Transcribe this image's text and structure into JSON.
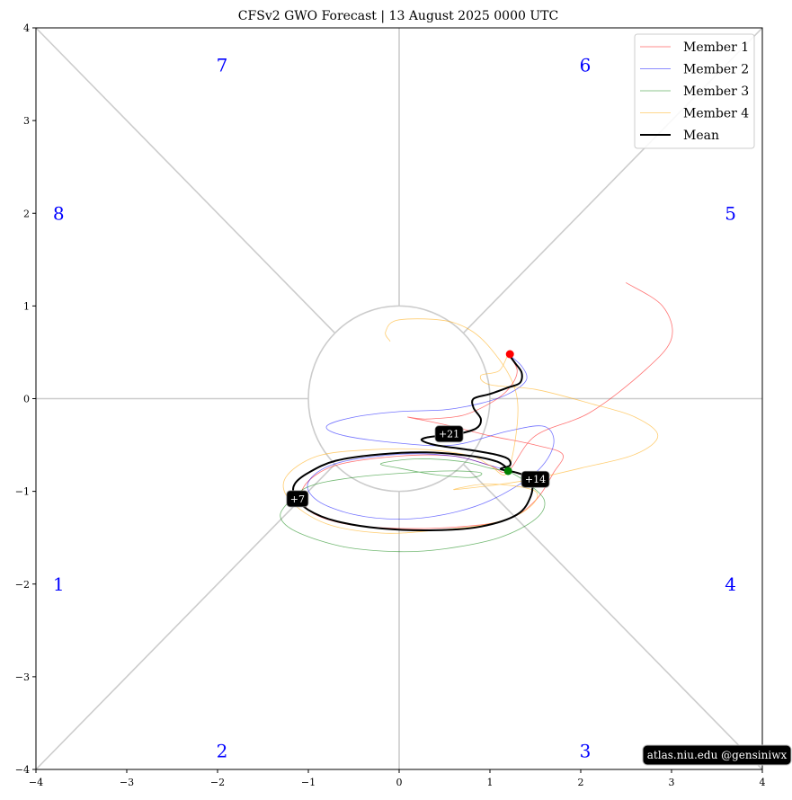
{
  "chart_data": {
    "type": "line",
    "title": "CFSv2 GWO Forecast   |   13  August  2025 0000 UTC",
    "xlim": [
      -4,
      4
    ],
    "ylim": [
      -4,
      4
    ],
    "xticks": [
      -4,
      -3,
      -2,
      -1,
      0,
      1,
      2,
      3,
      4
    ],
    "yticks": [
      -4,
      -3,
      -2,
      -1,
      0,
      1,
      2,
      3,
      4
    ],
    "xtick_labels": [
      "−4",
      "−3",
      "−2",
      "−1",
      "0",
      "1",
      "2",
      "3",
      "4"
    ],
    "ytick_labels": [
      "−4",
      "−3",
      "−2",
      "−1",
      "0",
      "1",
      "2",
      "3",
      "4"
    ],
    "grid": false,
    "unit_circle": true,
    "phase_labels": [
      {
        "text": "1",
        "x": -3.75,
        "y": -2.0
      },
      {
        "text": "2",
        "x": -1.95,
        "y": -3.8
      },
      {
        "text": "3",
        "x": 2.05,
        "y": -3.8
      },
      {
        "text": "4",
        "x": 3.65,
        "y": -2.0
      },
      {
        "text": "5",
        "x": 3.65,
        "y": 2.0
      },
      {
        "text": "6",
        "x": 2.05,
        "y": 3.6
      },
      {
        "text": "7",
        "x": -1.95,
        "y": 3.6
      },
      {
        "text": "8",
        "x": -3.75,
        "y": 2.0
      }
    ],
    "legend_position": "top-right",
    "series": [
      {
        "name": "Member 1",
        "color": "#ff0000",
        "points": [
          [
            1.2,
            0.48
          ],
          [
            1.3,
            0.3
          ],
          [
            1.2,
            0.1
          ],
          [
            1.0,
            -0.05
          ],
          [
            0.7,
            -0.18
          ],
          [
            0.3,
            -0.22
          ],
          [
            0.1,
            -0.2
          ],
          [
            0.5,
            -0.28
          ],
          [
            1.0,
            -0.4
          ],
          [
            1.5,
            -0.5
          ],
          [
            1.8,
            -0.6
          ],
          [
            1.7,
            -0.8
          ],
          [
            1.5,
            -1.1
          ],
          [
            1.2,
            -1.3
          ],
          [
            0.7,
            -1.38
          ],
          [
            0.0,
            -1.4
          ],
          [
            -0.6,
            -1.35
          ],
          [
            -1.0,
            -1.2
          ],
          [
            -1.05,
            -0.95
          ],
          [
            -0.7,
            -0.72
          ],
          [
            0.0,
            -0.62
          ],
          [
            0.6,
            -0.62
          ],
          [
            1.0,
            -0.72
          ],
          [
            1.2,
            -0.78
          ],
          [
            1.5,
            -0.4
          ],
          [
            2.1,
            -0.15
          ],
          [
            2.7,
            0.3
          ],
          [
            3.0,
            0.65
          ],
          [
            2.9,
            1.0
          ],
          [
            2.5,
            1.25
          ]
        ]
      },
      {
        "name": "Member 2",
        "color": "#0000ff",
        "points": [
          [
            1.2,
            0.48
          ],
          [
            1.35,
            0.35
          ],
          [
            1.4,
            0.2
          ],
          [
            1.2,
            0.05
          ],
          [
            0.9,
            -0.05
          ],
          [
            0.5,
            -0.12
          ],
          [
            0.0,
            -0.14
          ],
          [
            -0.5,
            -0.2
          ],
          [
            -0.8,
            -0.3
          ],
          [
            -0.6,
            -0.4
          ],
          [
            0.0,
            -0.48
          ],
          [
            0.6,
            -0.5
          ],
          [
            1.2,
            -0.35
          ],
          [
            1.6,
            -0.3
          ],
          [
            1.7,
            -0.5
          ],
          [
            1.5,
            -0.8
          ],
          [
            1.0,
            -1.1
          ],
          [
            0.5,
            -1.25
          ],
          [
            0.0,
            -1.3
          ],
          [
            -0.5,
            -1.25
          ],
          [
            -0.9,
            -1.1
          ],
          [
            -1.0,
            -0.9
          ],
          [
            -0.7,
            -0.7
          ],
          [
            0.0,
            -0.6
          ],
          [
            0.6,
            -0.62
          ],
          [
            1.0,
            -0.72
          ],
          [
            1.2,
            -0.78
          ]
        ]
      },
      {
        "name": "Member 3",
        "color": "#008000",
        "points": [
          [
            1.2,
            -0.78
          ],
          [
            1.4,
            -0.9
          ],
          [
            1.6,
            -1.1
          ],
          [
            1.5,
            -1.3
          ],
          [
            1.1,
            -1.5
          ],
          [
            0.5,
            -1.62
          ],
          [
            0.0,
            -1.65
          ],
          [
            -0.6,
            -1.6
          ],
          [
            -1.1,
            -1.45
          ],
          [
            -1.3,
            -1.3
          ],
          [
            -1.25,
            -1.15
          ],
          [
            -1.0,
            -0.95
          ],
          [
            -0.5,
            -0.85
          ],
          [
            0.1,
            -0.8
          ],
          [
            0.6,
            -0.78
          ],
          [
            0.9,
            -0.8
          ],
          [
            0.8,
            -0.85
          ],
          [
            0.4,
            -0.82
          ],
          [
            0.0,
            -0.75
          ],
          [
            -0.2,
            -0.7
          ],
          [
            0.2,
            -0.65
          ],
          [
            0.7,
            -0.68
          ],
          [
            1.0,
            -0.75
          ],
          [
            1.2,
            -0.78
          ]
        ]
      },
      {
        "name": "Member 4",
        "color": "#ffa500",
        "points": [
          [
            1.2,
            0.48
          ],
          [
            1.1,
            0.3
          ],
          [
            0.9,
            0.25
          ],
          [
            1.0,
            0.15
          ],
          [
            1.5,
            0.1
          ],
          [
            2.1,
            -0.05
          ],
          [
            2.6,
            -0.2
          ],
          [
            2.85,
            -0.4
          ],
          [
            2.6,
            -0.6
          ],
          [
            2.0,
            -0.75
          ],
          [
            1.4,
            -0.88
          ],
          [
            0.9,
            -0.95
          ],
          [
            0.6,
            -0.98
          ],
          [
            1.0,
            -0.92
          ],
          [
            1.5,
            -1.0
          ],
          [
            1.4,
            -1.2
          ],
          [
            1.0,
            -1.35
          ],
          [
            0.4,
            -1.42
          ],
          [
            -0.2,
            -1.45
          ],
          [
            -0.8,
            -1.35
          ],
          [
            -1.2,
            -1.1
          ],
          [
            -1.25,
            -0.85
          ],
          [
            -0.9,
            -0.62
          ],
          [
            -0.3,
            -0.55
          ],
          [
            0.3,
            -0.55
          ],
          [
            0.8,
            -0.62
          ],
          [
            1.0,
            -0.72
          ],
          [
            1.2,
            -0.78
          ],
          [
            1.3,
            0.0
          ],
          [
            1.0,
            0.55
          ],
          [
            0.6,
            0.82
          ],
          [
            0.0,
            0.85
          ],
          [
            -0.15,
            0.72
          ],
          [
            -0.1,
            0.62
          ]
        ]
      },
      {
        "name": "Mean",
        "color": "#000000",
        "points": [
          [
            1.22,
            0.46
          ],
          [
            1.28,
            0.38
          ],
          [
            1.35,
            0.28
          ],
          [
            1.33,
            0.17
          ],
          [
            1.2,
            0.12
          ],
          [
            1.0,
            0.05
          ],
          [
            0.82,
            0.0
          ],
          [
            0.82,
            -0.1
          ],
          [
            0.9,
            -0.22
          ],
          [
            0.85,
            -0.32
          ],
          [
            0.65,
            -0.38
          ],
          [
            0.45,
            -0.4
          ],
          [
            0.3,
            -0.42
          ],
          [
            0.25,
            -0.45
          ],
          [
            0.4,
            -0.5
          ],
          [
            0.75,
            -0.55
          ],
          [
            1.05,
            -0.6
          ],
          [
            1.2,
            -0.65
          ],
          [
            1.22,
            -0.72
          ],
          [
            1.12,
            -0.76
          ],
          [
            1.3,
            -0.8
          ],
          [
            1.45,
            -0.87
          ],
          [
            1.45,
            -1.05
          ],
          [
            1.3,
            -1.25
          ],
          [
            0.9,
            -1.38
          ],
          [
            0.4,
            -1.42
          ],
          [
            -0.2,
            -1.4
          ],
          [
            -0.7,
            -1.32
          ],
          [
            -1.0,
            -1.2
          ],
          [
            -1.15,
            -1.05
          ],
          [
            -1.15,
            -0.92
          ],
          [
            -1.0,
            -0.8
          ],
          [
            -0.7,
            -0.67
          ],
          [
            -0.2,
            -0.6
          ],
          [
            0.3,
            -0.58
          ],
          [
            0.8,
            -0.62
          ],
          [
            1.08,
            -0.68
          ],
          [
            1.2,
            -0.76
          ],
          [
            1.2,
            -0.78
          ]
        ]
      }
    ],
    "start_point": {
      "x": 1.2,
      "y": -0.78,
      "color": "#008000"
    },
    "end_point": {
      "x": 1.22,
      "y": 0.48,
      "color": "#ff0000"
    },
    "day_labels": [
      {
        "text": "+7",
        "x": -1.12,
        "y": -1.08
      },
      {
        "text": "+14",
        "x": 1.5,
        "y": -0.87
      },
      {
        "text": "+21",
        "x": 0.55,
        "y": -0.38
      }
    ],
    "credit": "atlas.niu.edu  @gensiniwx"
  }
}
